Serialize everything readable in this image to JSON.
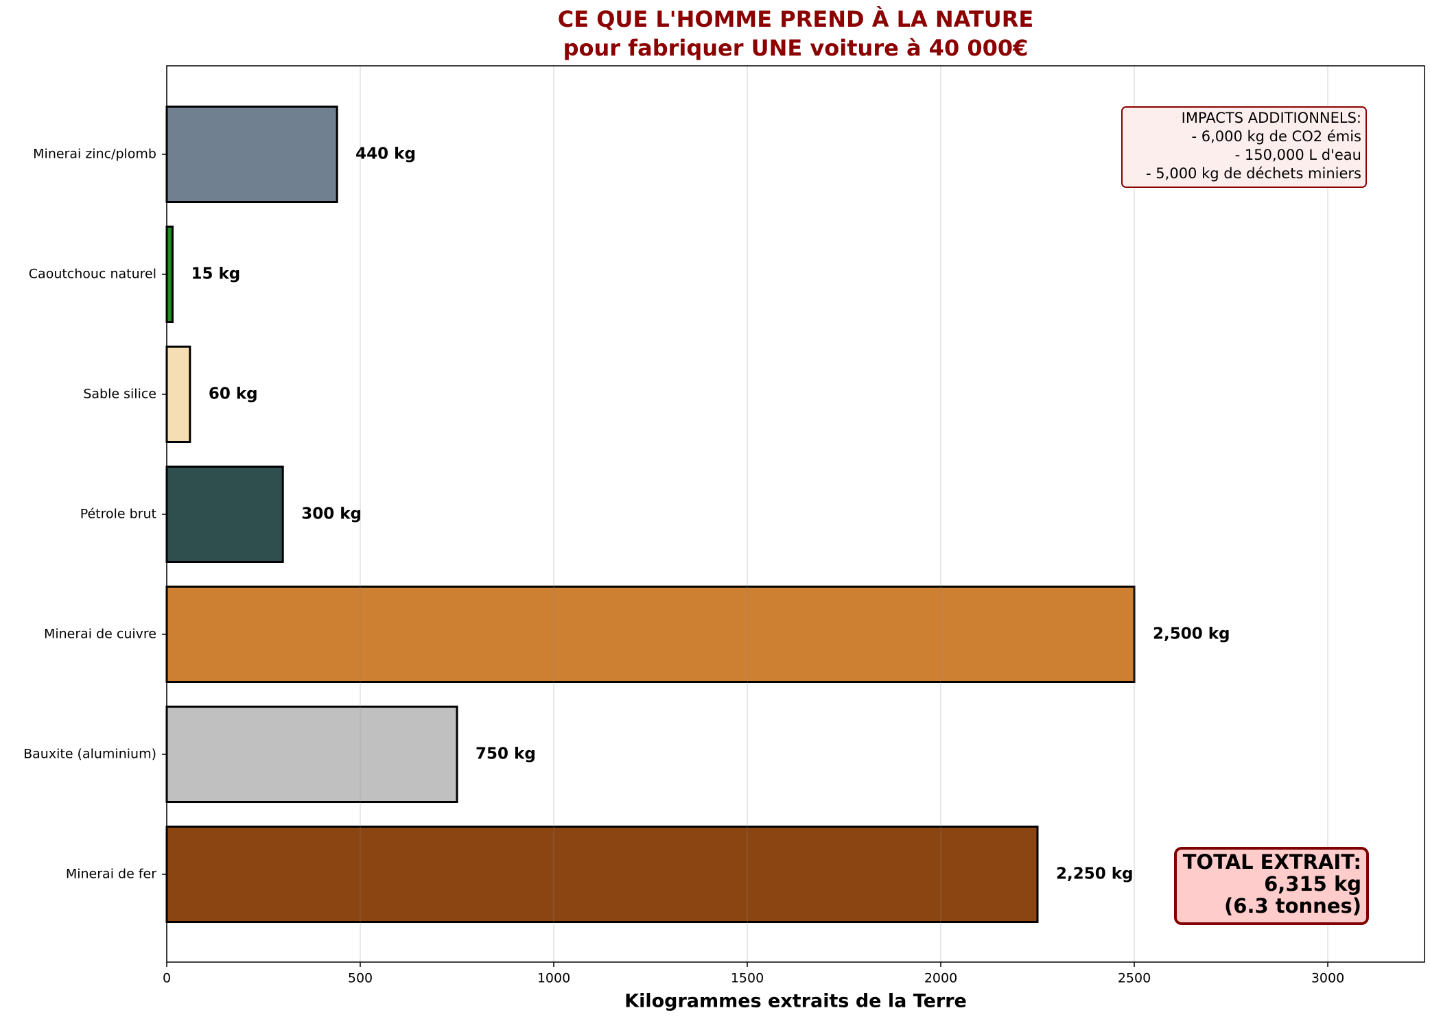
{
  "chart_data": {
    "type": "barh",
    "title": [
      "CE QUE L'HOMME PREND À LA NATURE",
      "pour fabriquer UNE voiture à 40 000€"
    ],
    "xlabel": "Kilogrammes extraits de la Terre",
    "categories": [
      "Minerai de fer",
      "Bauxite (aluminium)",
      "Minerai de cuivre",
      "Pétrole brut",
      "Sable silice",
      "Caoutchouc naturel",
      "Minerai zinc/plomb"
    ],
    "values": [
      2250,
      750,
      2500,
      300,
      60,
      15,
      440
    ],
    "value_labels": [
      "2,250 kg",
      "750 kg",
      "2,500 kg",
      "300 kg",
      "60 kg",
      "15 kg",
      "440 kg"
    ],
    "colors": [
      "#8B4513",
      "#C0C0C0",
      "#CD7F32",
      "#2F4F4F",
      "#F5DEB3",
      "#228B22",
      "#708090"
    ],
    "xlim": [
      0,
      3250
    ],
    "xticks": [
      0,
      500,
      1000,
      1500,
      2000,
      2500,
      3000
    ],
    "grid": true,
    "annotations": {
      "impacts": [
        "IMPACTS ADDITIONNELS:",
        "- 6,000 kg de CO2 émis",
        "- 150,000 L d'eau",
        "- 5,000 kg de déchets miniers"
      ],
      "total": [
        "TOTAL EXTRAIT:",
        "6,315 kg",
        "(6.3 tonnes)"
      ]
    }
  }
}
